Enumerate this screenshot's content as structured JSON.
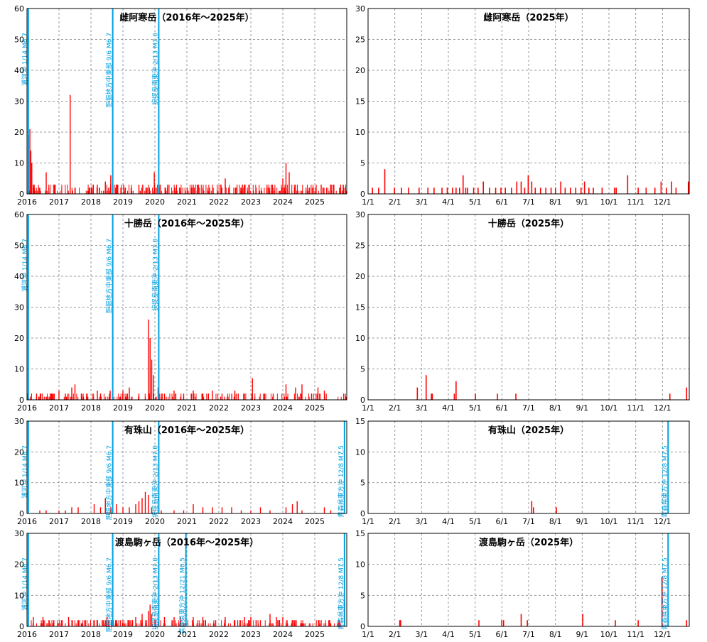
{
  "colors": {
    "bar": "#ff0000",
    "event": "#00a0e0",
    "grid": "#999999",
    "axis": "#000000"
  },
  "chart_data": [
    {
      "type": "bar",
      "title": "雌阿寒岳（2016年～2025年）",
      "x_range": [
        2016.0,
        2026.0
      ],
      "ylim": [
        0,
        60
      ],
      "yticks": [
        0,
        10,
        20,
        30,
        40,
        50,
        60
      ],
      "xticks": [
        "2016",
        "2017",
        "2018",
        "2019",
        "2020",
        "2021",
        "2022",
        "2023",
        "2024",
        "2025"
      ],
      "grid": true,
      "events": [
        {
          "x": 2016.04,
          "label": "浦河沖 1/14 M6.7"
        },
        {
          "x": 2018.68,
          "label": "胆振地方中東部 9/6 M6.7"
        },
        {
          "x": 2020.12,
          "label": "択捉島南東沖 2/13 M7.0"
        }
      ],
      "bars": [
        [
          2016.05,
          19
        ],
        [
          2016.09,
          21
        ],
        [
          2016.12,
          14
        ],
        [
          2016.15,
          10
        ],
        [
          2016.2,
          3
        ],
        [
          2016.6,
          7
        ],
        [
          2017.35,
          32
        ],
        [
          2017.5,
          2
        ],
        [
          2018.2,
          3
        ],
        [
          2018.45,
          4
        ],
        [
          2018.62,
          6
        ],
        [
          2019.5,
          3
        ],
        [
          2019.75,
          2
        ],
        [
          2019.98,
          7
        ],
        [
          2020.4,
          3
        ],
        [
          2021.5,
          2
        ],
        [
          2022.2,
          5
        ],
        [
          2022.8,
          3
        ],
        [
          2023.5,
          2
        ],
        [
          2024.0,
          5
        ],
        [
          2024.1,
          10
        ],
        [
          2024.2,
          7
        ],
        [
          2024.4,
          3
        ],
        [
          2025.2,
          3
        ],
        [
          2025.5,
          3
        ],
        [
          2025.8,
          2
        ]
      ],
      "baseline": {
        "seed": 11,
        "count": 320,
        "max": 3
      }
    },
    {
      "type": "bar",
      "title": "雌阿寒岳（2025年）",
      "x_range": [
        0,
        365
      ],
      "ylim": [
        0,
        30
      ],
      "yticks": [
        0,
        5,
        10,
        15,
        20,
        25,
        30
      ],
      "xticks": [
        "1/1",
        "2/1",
        "3/1",
        "4/1",
        "5/1",
        "6/1",
        "7/1",
        "8/1",
        "9/1",
        "10/1",
        "11/1",
        "12/1"
      ],
      "grid": true,
      "events": [],
      "bars": [
        [
          5,
          1
        ],
        [
          12,
          1
        ],
        [
          19,
          4
        ],
        [
          30,
          1
        ],
        [
          38,
          1
        ],
        [
          46,
          1
        ],
        [
          58,
          1
        ],
        [
          68,
          1
        ],
        [
          75,
          1
        ],
        [
          84,
          1
        ],
        [
          90,
          1
        ],
        [
          96,
          1
        ],
        [
          100,
          1
        ],
        [
          104,
          1
        ],
        [
          108,
          3
        ],
        [
          111,
          1
        ],
        [
          113,
          1
        ],
        [
          120,
          1
        ],
        [
          125,
          1
        ],
        [
          131,
          2
        ],
        [
          138,
          1
        ],
        [
          145,
          1
        ],
        [
          151,
          1
        ],
        [
          156,
          1
        ],
        [
          163,
          1
        ],
        [
          169,
          2
        ],
        [
          174,
          2
        ],
        [
          178,
          1
        ],
        [
          182,
          3
        ],
        [
          186,
          2
        ],
        [
          190,
          1
        ],
        [
          196,
          1
        ],
        [
          202,
          1
        ],
        [
          208,
          1
        ],
        [
          213,
          1
        ],
        [
          219,
          2
        ],
        [
          224,
          1
        ],
        [
          230,
          1
        ],
        [
          236,
          1
        ],
        [
          242,
          1
        ],
        [
          246,
          2
        ],
        [
          251,
          1
        ],
        [
          256,
          1
        ],
        [
          266,
          1
        ],
        [
          280,
          1
        ],
        [
          282,
          1
        ],
        [
          295,
          3
        ],
        [
          307,
          1
        ],
        [
          316,
          1
        ],
        [
          326,
          1
        ],
        [
          333,
          2
        ],
        [
          339,
          1
        ],
        [
          345,
          2
        ],
        [
          350,
          1
        ],
        [
          364,
          2
        ]
      ]
    },
    {
      "type": "bar",
      "title": "十勝岳（2016年～2025年）",
      "x_range": [
        2016.0,
        2026.0
      ],
      "ylim": [
        0,
        60
      ],
      "yticks": [
        0,
        10,
        20,
        30,
        40,
        50,
        60
      ],
      "xticks": [
        "2016",
        "2017",
        "2018",
        "2019",
        "2020",
        "2021",
        "2022",
        "2023",
        "2024",
        "2025"
      ],
      "grid": true,
      "events": [
        {
          "x": 2016.04,
          "label": "浦河沖 1/14 M6.7"
        },
        {
          "x": 2018.68,
          "label": "胆振地方中東部 9/6 M6.7"
        },
        {
          "x": 2020.12,
          "label": "択捉島南東沖 2/13 M7.0"
        }
      ],
      "bars": [
        [
          2016.1,
          1
        ],
        [
          2016.3,
          2
        ],
        [
          2016.6,
          1
        ],
        [
          2017.0,
          3
        ],
        [
          2017.2,
          2
        ],
        [
          2017.4,
          4
        ],
        [
          2017.5,
          5
        ],
        [
          2017.7,
          2
        ],
        [
          2018.2,
          3
        ],
        [
          2018.3,
          2
        ],
        [
          2018.6,
          3
        ],
        [
          2019.0,
          3
        ],
        [
          2019.2,
          4
        ],
        [
          2019.5,
          2
        ],
        [
          2019.8,
          26
        ],
        [
          2019.85,
          20
        ],
        [
          2019.9,
          13
        ],
        [
          2019.95,
          8
        ],
        [
          2020.1,
          4
        ],
        [
          2020.3,
          2
        ],
        [
          2020.6,
          3
        ],
        [
          2020.9,
          2
        ],
        [
          2021.2,
          3
        ],
        [
          2021.5,
          2
        ],
        [
          2021.8,
          3
        ],
        [
          2022.1,
          2
        ],
        [
          2022.5,
          3
        ],
        [
          2022.8,
          2
        ],
        [
          2023.05,
          7
        ],
        [
          2023.4,
          2
        ],
        [
          2023.7,
          2
        ],
        [
          2024.1,
          5
        ],
        [
          2024.4,
          4
        ],
        [
          2024.6,
          5
        ],
        [
          2024.9,
          2
        ],
        [
          2025.1,
          4
        ],
        [
          2025.3,
          3
        ],
        [
          2025.95,
          2
        ]
      ],
      "baseline": {
        "seed": 23,
        "count": 180,
        "max": 2
      }
    },
    {
      "type": "bar",
      "title": "十勝岳（2025年）",
      "x_range": [
        0,
        365
      ],
      "ylim": [
        0,
        30
      ],
      "yticks": [
        0,
        5,
        10,
        15,
        20,
        25,
        30
      ],
      "xticks": [
        "1/1",
        "2/1",
        "3/1",
        "4/1",
        "5/1",
        "6/1",
        "7/1",
        "8/1",
        "9/1",
        "10/1",
        "11/1",
        "12/1"
      ],
      "grid": true,
      "events": [],
      "bars": [
        [
          56,
          2
        ],
        [
          66,
          4
        ],
        [
          72,
          1
        ],
        [
          73,
          1
        ],
        [
          98,
          1
        ],
        [
          100,
          3
        ],
        [
          122,
          1
        ],
        [
          147,
          1
        ],
        [
          168,
          1
        ],
        [
          343,
          1
        ],
        [
          362,
          2
        ]
      ]
    },
    {
      "type": "bar",
      "title": "有珠山（2016年～2025年）",
      "x_range": [
        2016.0,
        2026.0
      ],
      "ylim": [
        0,
        30
      ],
      "yticks": [
        0,
        10,
        20,
        30
      ],
      "xticks": [
        "2016",
        "2017",
        "2018",
        "2019",
        "2020",
        "2021",
        "2022",
        "2023",
        "2024",
        "2025"
      ],
      "grid": true,
      "events": [
        {
          "x": 2016.04,
          "label": "浦河沖 1/14 M6.7"
        },
        {
          "x": 2018.68,
          "label": "胆振地方中東部 9/6 M6.7"
        },
        {
          "x": 2020.12,
          "label": "択捉島南東沖 2/13 M7.0"
        },
        {
          "x": 2025.93,
          "label": "青森県東方沖 12/8 M7.5"
        }
      ],
      "bars": [
        [
          2016.4,
          1
        ],
        [
          2016.6,
          1
        ],
        [
          2017.0,
          1
        ],
        [
          2017.2,
          1
        ],
        [
          2017.4,
          2
        ],
        [
          2017.6,
          2
        ],
        [
          2018.1,
          3
        ],
        [
          2018.3,
          2
        ],
        [
          2018.45,
          5
        ],
        [
          2018.62,
          2
        ],
        [
          2018.8,
          3
        ],
        [
          2019.0,
          2
        ],
        [
          2019.2,
          2
        ],
        [
          2019.4,
          3
        ],
        [
          2019.5,
          4
        ],
        [
          2019.6,
          5
        ],
        [
          2019.7,
          7
        ],
        [
          2019.8,
          6
        ],
        [
          2019.9,
          2
        ],
        [
          2020.2,
          1
        ],
        [
          2020.6,
          1
        ],
        [
          2020.9,
          1
        ],
        [
          2021.2,
          3
        ],
        [
          2021.5,
          2
        ],
        [
          2021.8,
          2
        ],
        [
          2022.1,
          2
        ],
        [
          2022.4,
          2
        ],
        [
          2022.7,
          1
        ],
        [
          2023.0,
          1
        ],
        [
          2023.3,
          2
        ],
        [
          2023.6,
          1
        ],
        [
          2024.1,
          2
        ],
        [
          2024.3,
          3
        ],
        [
          2024.45,
          4
        ],
        [
          2024.6,
          1
        ],
        [
          2025.3,
          2
        ],
        [
          2025.5,
          1
        ]
      ]
    },
    {
      "type": "bar",
      "title": "有珠山（2025年）",
      "x_range": [
        0,
        365
      ],
      "ylim": [
        0,
        15
      ],
      "yticks": [
        0,
        5,
        10,
        15
      ],
      "xticks": [
        "1/1",
        "2/1",
        "3/1",
        "4/1",
        "5/1",
        "6/1",
        "7/1",
        "8/1",
        "9/1",
        "10/1",
        "11/1",
        "12/1"
      ],
      "grid": true,
      "events": [
        {
          "x": 341,
          "label": "青森県東方沖 12/8 M7.5"
        }
      ],
      "bars": [
        [
          186,
          2
        ],
        [
          188,
          1
        ],
        [
          214,
          1
        ]
      ]
    },
    {
      "type": "bar",
      "title": "渡島駒ヶ岳（2016年～2025年）",
      "x_range": [
        2016.0,
        2026.0
      ],
      "ylim": [
        0,
        30
      ],
      "yticks": [
        0,
        10,
        20,
        30
      ],
      "xticks": [
        "2016",
        "2017",
        "2018",
        "2019",
        "2020",
        "2021",
        "2022",
        "2023",
        "2024",
        "2025"
      ],
      "grid": true,
      "events": [
        {
          "x": 2016.04,
          "label": "浦河沖 1/14 M6.7"
        },
        {
          "x": 2018.68,
          "label": "胆振地方中東部 9/6 M6.7"
        },
        {
          "x": 2020.12,
          "label": "択捉島南東沖 2/13 M7.0"
        },
        {
          "x": 2020.97,
          "label": "青森県東方沖 12/21 M6.5"
        },
        {
          "x": 2025.93,
          "label": "青森県東方沖 12/8 M7.5"
        }
      ],
      "bars": [
        [
          2016.2,
          3
        ],
        [
          2016.5,
          3
        ],
        [
          2017.1,
          2
        ],
        [
          2017.3,
          3
        ],
        [
          2017.7,
          1
        ],
        [
          2018.2,
          2
        ],
        [
          2018.5,
          3
        ],
        [
          2018.8,
          2
        ],
        [
          2019.2,
          2
        ],
        [
          2019.4,
          3
        ],
        [
          2019.6,
          4
        ],
        [
          2019.8,
          5
        ],
        [
          2019.85,
          7
        ],
        [
          2019.9,
          4
        ],
        [
          2020.0,
          2
        ],
        [
          2020.3,
          3
        ],
        [
          2020.6,
          3
        ],
        [
          2020.8,
          3
        ],
        [
          2021.2,
          3
        ],
        [
          2021.5,
          3
        ],
        [
          2021.9,
          2
        ],
        [
          2022.2,
          3
        ],
        [
          2022.5,
          2
        ],
        [
          2022.8,
          3
        ],
        [
          2023.0,
          3
        ],
        [
          2023.3,
          2
        ],
        [
          2023.6,
          4
        ],
        [
          2023.8,
          3
        ],
        [
          2024.0,
          3
        ],
        [
          2024.3,
          2
        ],
        [
          2024.6,
          1
        ],
        [
          2025.2,
          2
        ],
        [
          2025.5,
          1
        ],
        [
          2025.94,
          8
        ]
      ],
      "baseline": {
        "seed": 37,
        "count": 220,
        "max": 2
      }
    },
    {
      "type": "bar",
      "title": "渡島駒ヶ岳（2025年）",
      "x_range": [
        0,
        365
      ],
      "ylim": [
        0,
        15
      ],
      "yticks": [
        0,
        5,
        10,
        15
      ],
      "xticks": [
        "1/1",
        "2/1",
        "3/1",
        "4/1",
        "5/1",
        "6/1",
        "7/1",
        "8/1",
        "9/1",
        "10/1",
        "11/1",
        "12/1"
      ],
      "grid": true,
      "events": [
        {
          "x": 341,
          "label": "青森県東方沖 12/8 M7.5"
        }
      ],
      "bars": [
        [
          36,
          1
        ],
        [
          37,
          1
        ],
        [
          126,
          1
        ],
        [
          152,
          1
        ],
        [
          154,
          1
        ],
        [
          174,
          2
        ],
        [
          181,
          1
        ],
        [
          244,
          2
        ],
        [
          281,
          1
        ],
        [
          307,
          1
        ],
        [
          334,
          8
        ],
        [
          362,
          1
        ]
      ]
    }
  ]
}
